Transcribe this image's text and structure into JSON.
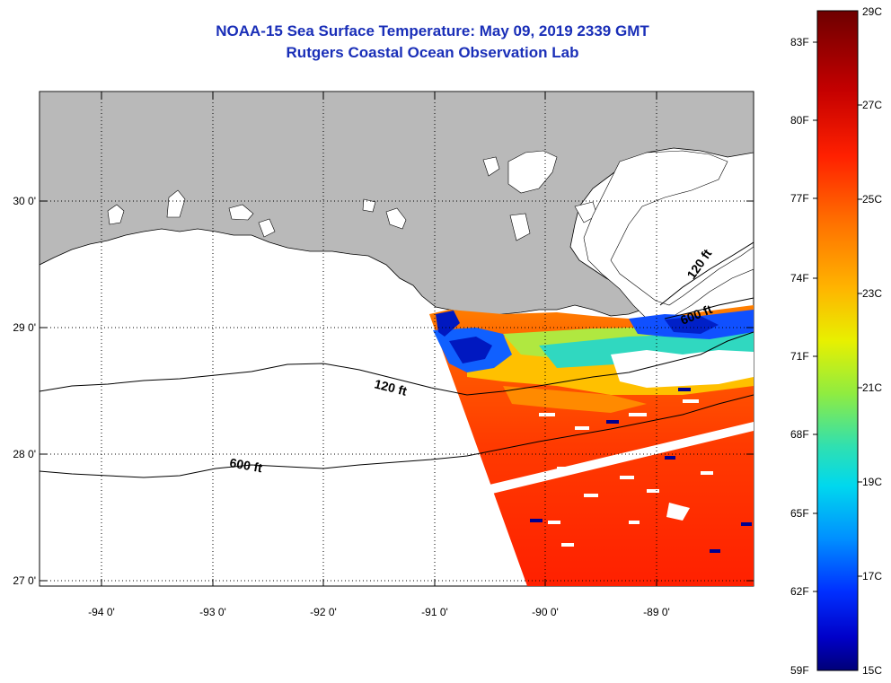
{
  "title": {
    "line1": "NOAA-15 Sea Surface Temperature:  May 09, 2019 2339 GMT",
    "line2": "Rutgers Coastal Ocean Observation Lab"
  },
  "map": {
    "x_ticks": [
      "-94 0'",
      "-93 0'",
      "-92 0'",
      "-91 0'",
      "-90 0'",
      "-89 0'"
    ],
    "y_ticks": [
      "30 0'",
      "29 0'",
      "28 0'",
      "27 0'"
    ],
    "contour_labels": [
      "120 ft",
      "600 ft",
      "120 ft",
      "600 ft"
    ],
    "colors": {
      "land": "#b9b9b9",
      "water": "#ffffff",
      "cloud": "#ffffff"
    }
  },
  "colorbar": {
    "fahrenheit": [
      "83F",
      "80F",
      "77F",
      "74F",
      "71F",
      "68F",
      "65F",
      "62F",
      "59F"
    ],
    "celsius": [
      "29C",
      "27C",
      "25C",
      "23C",
      "21C",
      "19C",
      "17C",
      "15C"
    ],
    "gradient": [
      "#7a0000",
      "#c80000",
      "#ff2a00",
      "#ff7a00",
      "#ffc800",
      "#f2f200",
      "#a0f040",
      "#40e0a0",
      "#00e0e0",
      "#0090ff",
      "#0030ff",
      "#0000c8",
      "#000080"
    ]
  }
}
